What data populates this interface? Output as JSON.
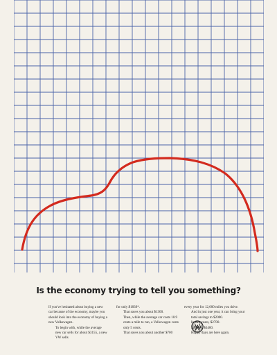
{
  "headline": "Is the economy trying to tell you something?",
  "fine_print": "",
  "body": {
    "col1": [
      "If you've hesitated about buying a new car because of the economy, maybe you should look into the economy of buying a new Volkswagen.",
      "To begin with, while the average new car sells for about $3155, a new VW sells"
    ],
    "col2": [
      "for only $1839*.",
      "That saves you about $1300.",
      "Then, while the average car costs 10.9 cents a mile to run, a Volkswagen costs only 5 cents.",
      "That saves you about another $700"
    ],
    "col3": [
      "every year for 12,000 miles you drive.",
      "And in just one year, it can bring your total savings to $2000.",
      "In two years, $2700.",
      "In three, $3400.",
      "Happy days are here again."
    ]
  },
  "colors": {
    "paper": "#f4f1ea",
    "grid_line": "#4a63a8",
    "car_outline": "#d32a1e",
    "text": "#1e1e1e"
  },
  "icons": {
    "logo": "volkswagen-logo"
  }
}
